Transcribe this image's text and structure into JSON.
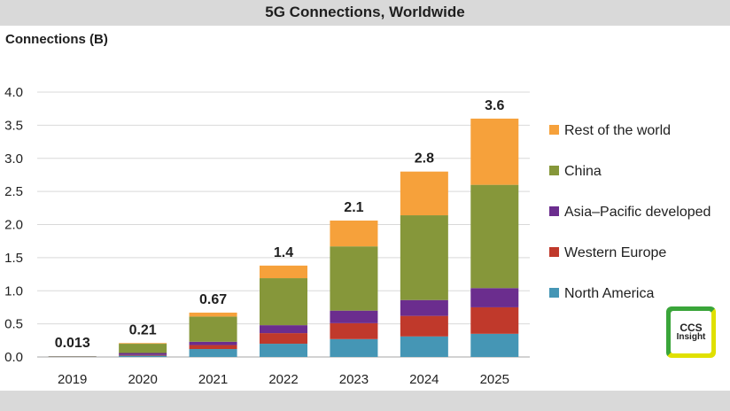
{
  "chart_data": {
    "type": "bar",
    "stacked": true,
    "title": "5G Connections, Worldwide",
    "ylabel": "Connections (B)",
    "xlabel": "",
    "ylim": [
      0,
      4.0
    ],
    "yticks": [
      "0.0",
      "0.5",
      "1.0",
      "1.5",
      "2.0",
      "2.5",
      "3.0",
      "3.5",
      "4.0"
    ],
    "categories": [
      "2019",
      "2020",
      "2021",
      "2022",
      "2023",
      "2024",
      "2025"
    ],
    "totals_labels": [
      "0.013",
      "0.21",
      "0.67",
      "1.4",
      "2.1",
      "2.8",
      "3.6"
    ],
    "grid": true,
    "legend": "right",
    "series": [
      {
        "name": "North America",
        "color": "#4596b5",
        "values": [
          0.005,
          0.02,
          0.12,
          0.2,
          0.27,
          0.31,
          0.35
        ]
      },
      {
        "name": "Western Europe",
        "color": "#c0392b",
        "values": [
          0.002,
          0.01,
          0.06,
          0.16,
          0.24,
          0.31,
          0.4
        ]
      },
      {
        "name": "Asia–Pacific developed",
        "color": "#6b2d8e",
        "values": [
          0.002,
          0.03,
          0.05,
          0.12,
          0.19,
          0.24,
          0.29
        ]
      },
      {
        "name": "China",
        "color": "#86973a",
        "values": [
          0.003,
          0.14,
          0.38,
          0.71,
          0.97,
          1.28,
          1.56
        ]
      },
      {
        "name": "Rest of the world",
        "color": "#f6a13b",
        "values": [
          0.001,
          0.01,
          0.06,
          0.19,
          0.39,
          0.66,
          1.0
        ]
      }
    ]
  },
  "logo": {
    "line1": "CCS",
    "line2": "Insight"
  }
}
